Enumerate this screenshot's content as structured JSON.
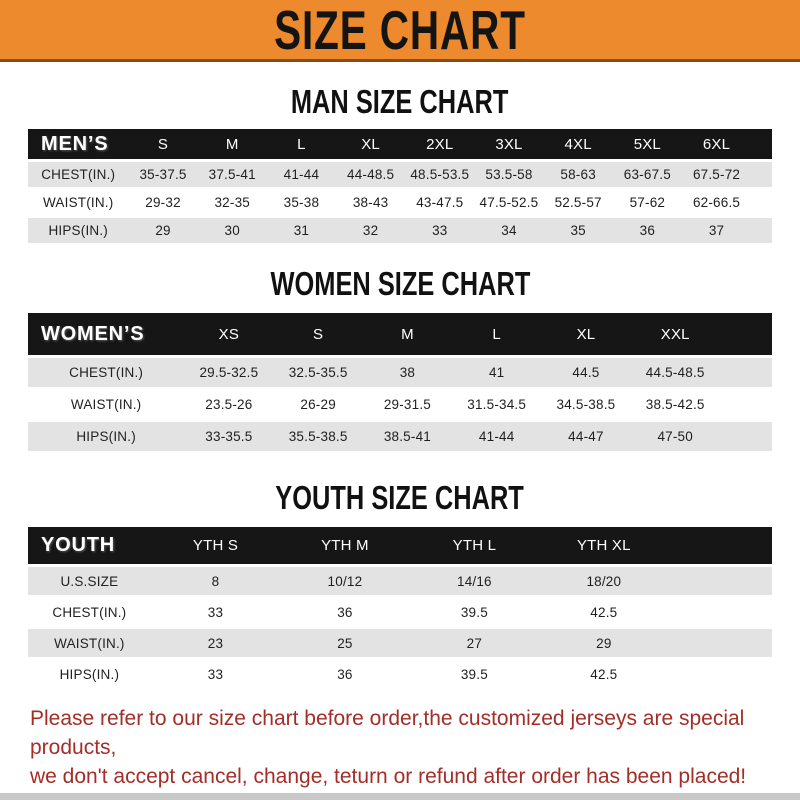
{
  "banner": {
    "title": "SIZE CHART"
  },
  "sections": {
    "men": {
      "heading": "MAN SIZE CHART"
    },
    "women": {
      "heading": "WOMEN SIZE CHART"
    },
    "youth": {
      "heading": "YOUTH SIZE CHART"
    }
  },
  "tables": {
    "men": {
      "label": "MEN’S",
      "columns": [
        "S",
        "M",
        "L",
        "XL",
        "2XL",
        "3XL",
        "4XL",
        "5XL",
        "6XL"
      ],
      "rows": [
        {
          "label": "CHEST(IN.)",
          "values": [
            "35-37.5",
            "37.5-41",
            "41-44",
            "44-48.5",
            "48.5-53.5",
            "53.5-58",
            "58-63",
            "63-67.5",
            "67.5-72"
          ]
        },
        {
          "label": "WAIST(IN.)",
          "values": [
            "29-32",
            "32-35",
            "35-38",
            "38-43",
            "43-47.5",
            "47.5-52.5",
            "52.5-57",
            "57-62",
            "62-66.5"
          ]
        },
        {
          "label": "HIPS(IN.)",
          "values": [
            "29",
            "30",
            "31",
            "32",
            "33",
            "34",
            "35",
            "36",
            "37"
          ]
        }
      ]
    },
    "women": {
      "label": "WOMEN’S",
      "columns": [
        "XS",
        "S",
        "M",
        "L",
        "XL",
        "XXL"
      ],
      "rows": [
        {
          "label": "CHEST(IN.)",
          "values": [
            "29.5-32.5",
            "32.5-35.5",
            "38",
            "41",
            "44.5",
            "44.5-48.5"
          ]
        },
        {
          "label": "WAIST(IN.)",
          "values": [
            "23.5-26",
            "26-29",
            "29-31.5",
            "31.5-34.5",
            "34.5-38.5",
            "38.5-42.5"
          ]
        },
        {
          "label": "HIPS(IN.)",
          "values": [
            "33-35.5",
            "35.5-38.5",
            "38.5-41",
            "41-44",
            "44-47",
            "47-50"
          ]
        }
      ]
    },
    "youth": {
      "label": "YOUTH",
      "columns": [
        "YTH S",
        "YTH M",
        "YTH L",
        "YTH XL"
      ],
      "rows": [
        {
          "label": "U.S.SIZE",
          "values": [
            "8",
            "10/12",
            "14/16",
            "18/20"
          ]
        },
        {
          "label": "CHEST(IN.)",
          "values": [
            "33",
            "36",
            "39.5",
            "42.5"
          ]
        },
        {
          "label": "WAIST(IN.)",
          "values": [
            "23",
            "25",
            "27",
            "29"
          ]
        },
        {
          "label": "HIPS(IN.)",
          "values": [
            "33",
            "36",
            "39.5",
            "42.5"
          ]
        }
      ]
    }
  },
  "notes": {
    "line1": "Please refer to our size chart before order,the customized jerseys are special products,",
    "line2": "we don't accept cancel, change, teturn or refund after order has been placed!"
  },
  "colors": {
    "banner_bg": "#ec8a2d",
    "banner_edge": "#8a4a12",
    "header_bar_bg": "#161616",
    "header_bar_text": "#ffffff",
    "row_stripe": "#e3e3e3",
    "body_text": "#1f1f1f",
    "note_red": "#a32e28",
    "bottom_strip": "#c9c9c9"
  }
}
